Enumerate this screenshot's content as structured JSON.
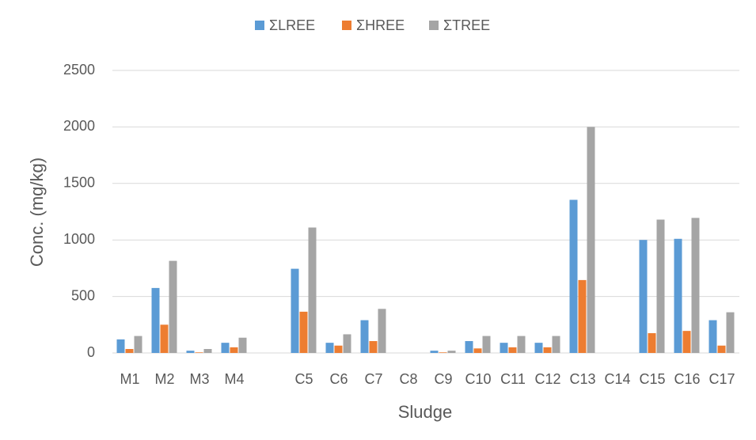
{
  "chart_data": {
    "type": "bar",
    "x_label": "Sludge",
    "y_label": "Conc. (mg/kg)",
    "categories": [
      "M1",
      "M2",
      "M3",
      "M4",
      null,
      "C5",
      "C6",
      "C7",
      "C8",
      "C9",
      "C10",
      "C11",
      "C12",
      "C13",
      "C14",
      "C15",
      "C16",
      "C17"
    ],
    "series": [
      {
        "name": "ΣLREE",
        "color": "#5b9bd5",
        "values": [
          120,
          575,
          20,
          90,
          null,
          745,
          90,
          290,
          0,
          20,
          105,
          90,
          90,
          1355,
          0,
          1000,
          1010,
          290
        ]
      },
      {
        "name": "ΣHREE",
        "color": "#ed7d31",
        "values": [
          35,
          250,
          5,
          50,
          null,
          365,
          65,
          105,
          0,
          5,
          40,
          50,
          50,
          645,
          0,
          175,
          195,
          65
        ]
      },
      {
        "name": "ΣTREE",
        "color": "#a5a5a5",
        "values": [
          150,
          815,
          35,
          135,
          null,
          1110,
          165,
          390,
          0,
          20,
          150,
          150,
          150,
          2000,
          0,
          1180,
          1195,
          360
        ]
      }
    ],
    "ylim": [
      0,
      2500
    ],
    "yticks": [
      0,
      500,
      1000,
      1500,
      2000,
      2500
    ],
    "grid": true,
    "legend": "top"
  }
}
